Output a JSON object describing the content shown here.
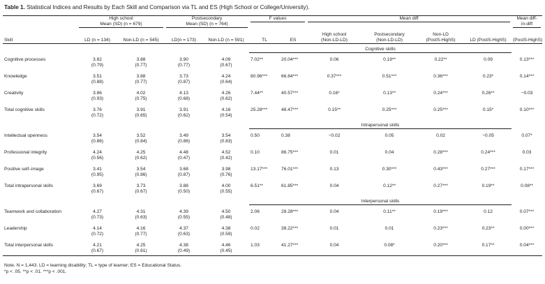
{
  "caption": {
    "label": "Table 1.",
    "text": "Statistical Indices and Results by Each Skill and Comparison via TL and ES (High School or College/University)."
  },
  "header": {
    "groups": {
      "high_school": "High school",
      "high_school_sub": "Mean (SD) (n = 679)",
      "postsecondary": "Postsecondary",
      "postsecondary_sub": "Mean (SD) (n = 764)",
      "f_values": "F values",
      "mean_diff": "Mean diff",
      "mean_diff_in_diff_1": "Mean diff-",
      "mean_diff_in_diff_2": "in-diff"
    },
    "columns": {
      "skill": "Skill",
      "hs_ld": "LD (n = 134)",
      "hs_nonld": "Non-LD (n = 545)",
      "ps_ld": "LD(n = 173)",
      "ps_nonld": "Non-LD (n = 591)",
      "tl": "TL",
      "es": "ES",
      "md_hs_1": "High school",
      "md_hs_2": "(Non-LD-LD)",
      "md_ps_1": "Postsecondary",
      "md_ps_2": "(Non-LD-LD)",
      "md_nonld_1": "Non-LD",
      "md_nonld_2": "(PostS-HighS)",
      "md_ld": "LD (PostS-HighS)",
      "mdid": "(PostS-HighS)"
    }
  },
  "sections": [
    {
      "title": "Cognitive skills",
      "rows": [
        {
          "skill": "Cognitive processes",
          "means": [
            "3.82",
            "3.88",
            "3.90",
            "4.09"
          ],
          "sds": [
            "(0.79)",
            "(0.77)",
            "(0.77)",
            "(0.67)"
          ],
          "tl": "7.02**",
          "es": "20.04***",
          "md_hs": "0.06",
          "md_ps": "0.19**",
          "md_nonld": "0.22**",
          "md_ld": "0.09",
          "mdid": "0.13***"
        },
        {
          "skill": "Knowledge",
          "means": [
            "3.51",
            "3.88",
            "3.73",
            "4.24"
          ],
          "sds": [
            "(0.88)",
            "(0.77)",
            "(0.87)",
            "(0.64)"
          ],
          "tl": "80.96***",
          "es": "66.84***",
          "md_hs": "0.37***",
          "md_ps": "0.51***",
          "md_nonld": "0.36***",
          "md_ld": "0.23*",
          "mdid": "0.14***"
        },
        {
          "skill": "Creativity",
          "means": [
            "3.86",
            "4.02",
            "4.13",
            "4.26"
          ],
          "sds": [
            "(0.93)",
            "(0.75)",
            "(0.68)",
            "(0.62)"
          ],
          "tl": "7.44**",
          "es": "40.57***",
          "md_hs": "0.16*",
          "md_ps": "0.13**",
          "md_nonld": "0.24***",
          "md_ld": "0.26**",
          "mdid": "−0.03"
        },
        {
          "skill": "Total cognitive skills",
          "means": [
            "3.76",
            "3.91",
            "3.91",
            "4.16"
          ],
          "sds": [
            "(0.72)",
            "(0.65)",
            "(0.62)",
            "(0.54)"
          ],
          "tl": "25.28***",
          "es": "48.47***",
          "md_hs": "0.15**",
          "md_ps": "0.25***",
          "md_nonld": "0.25***",
          "md_ld": "0.15*",
          "mdid": "0.10***"
        }
      ]
    },
    {
      "title": "Intrapersonal skills",
      "rows": [
        {
          "skill": "Intellectual openness",
          "means": [
            "3.54",
            "3.52",
            "3.49",
            "3.54"
          ],
          "sds": [
            "(0.86)",
            "(0.84)",
            "(0.86)",
            "(0.83)"
          ],
          "tl": "0.50",
          "es": "0.38",
          "md_hs": "−0.02",
          "md_ps": "0.05",
          "md_nonld": "0.02",
          "md_ld": "−0.05",
          "mdid": "0.07*"
        },
        {
          "skill": "Professional integrity",
          "means": [
            "4.24",
            "4.25",
            "4.48",
            "4.52"
          ],
          "sds": [
            "(0.56)",
            "(0.62)",
            "(0.47)",
            "(0.42)"
          ],
          "tl": "0.10",
          "es": "86.75***",
          "md_hs": "0.01",
          "md_ps": "0.04",
          "md_nonld": "0.28***",
          "md_ld": "0.24***",
          "mdid": "0.03"
        },
        {
          "skill": "Positive self–image",
          "means": [
            "3.41",
            "3.54",
            "3.68",
            "3.98"
          ],
          "sds": [
            "(0.95)",
            "(0.86)",
            "(0.87)",
            "(0.76)"
          ],
          "tl": "13.17***",
          "es": "76.01***",
          "md_hs": "0.13",
          "md_ps": "0.30***",
          "md_nonld": "0.43***",
          "md_ld": "0.27***",
          "mdid": "0.17***"
        },
        {
          "skill": "Total intrapersonal skills",
          "means": [
            "3.69",
            "3.73",
            "3.88",
            "4.00"
          ],
          "sds": [
            "(0.67)",
            "(0.67)",
            "(0.50)",
            "(0.55)"
          ],
          "tl": "6.51**",
          "es": "61.85***",
          "md_hs": "0.04",
          "md_ps": "0.12**",
          "md_nonld": "0.27***",
          "md_ld": "0.19**",
          "mdid": "0.08**"
        }
      ]
    },
    {
      "title": "Interpersonal skills",
      "rows": [
        {
          "skill": "Teamwork and collaboration",
          "means": [
            "4.27",
            "4.31",
            "4.39",
            "4.50"
          ],
          "sds": [
            "(0.73)",
            "(0.63)",
            "(0.55)",
            "(0.48)"
          ],
          "tl": "2.06",
          "es": "28.28***",
          "md_hs": "0.04",
          "md_ps": "0.11**",
          "md_nonld": "0.19***",
          "md_ld": "0.12",
          "mdid": "0.07***"
        },
        {
          "skill": "Leadership",
          "means": [
            "4.14",
            "4.16",
            "4.37",
            "4.38"
          ],
          "sds": [
            "(0.72)",
            "(0.77)",
            "(0.63)",
            "(0.59)"
          ],
          "tl": "0.02",
          "es": "38.22***",
          "md_hs": "0.01",
          "md_ps": "0.01",
          "md_nonld": "0.23***",
          "md_ld": "0.23**",
          "mdid": "0.00***"
        },
        {
          "skill": "Total interpersonal skills",
          "means": [
            "4.21",
            "4.25",
            "4.38",
            "4.46"
          ],
          "sds": [
            "(0.67)",
            "(0.61)",
            "(0.49)",
            "(0.45)"
          ],
          "tl": "1.03",
          "es": "41.27***",
          "md_hs": "0.04",
          "md_ps": "0.08*",
          "md_nonld": "0.20***",
          "md_ld": "0.17**",
          "mdid": "0.04***"
        }
      ]
    }
  ],
  "note": {
    "line1": "Note. N = 1,443. LD = learning disability; TL = type of learner; ES = Educational Status.",
    "line2": "*p < .05. **p < .01. ***p < .001."
  }
}
